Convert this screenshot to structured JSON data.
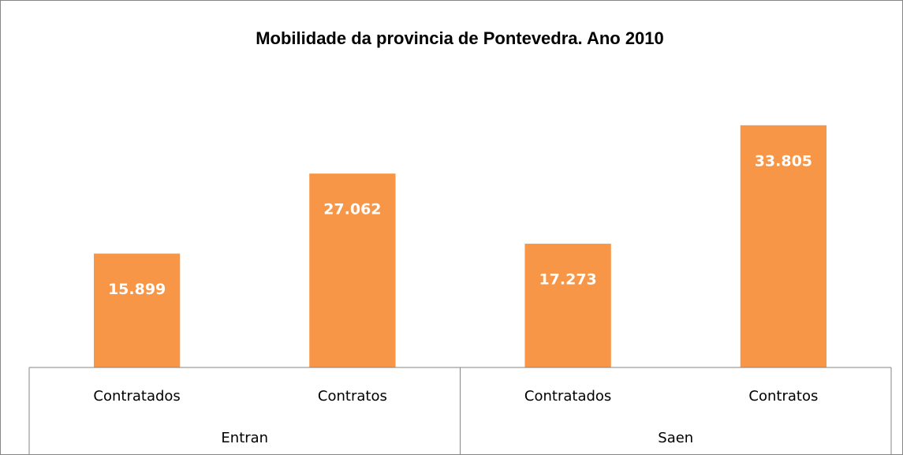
{
  "chart_data": {
    "type": "bar",
    "title": "Mobilidade da provincia de Pontevedra. Ano 2010",
    "categories": [
      "Contratados",
      "Contratos",
      "Contratados",
      "Contratos"
    ],
    "groups": [
      "Entran",
      "Saen"
    ],
    "values": [
      15899,
      27062,
      17273,
      33805
    ],
    "value_labels": [
      "15.899",
      "27.062",
      "17.273",
      "33.805"
    ],
    "color": "#f79646",
    "ylim": [
      0,
      35000
    ]
  }
}
